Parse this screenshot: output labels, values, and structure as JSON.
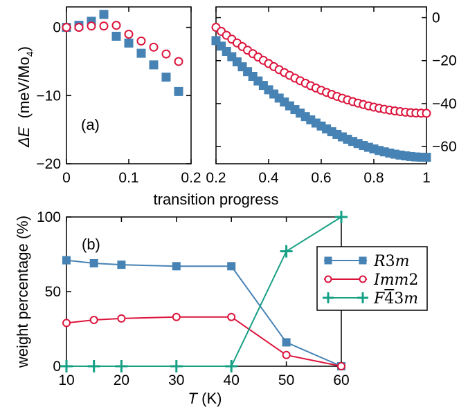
{
  "colors": {
    "blue": "#4682b4",
    "red": "#dc143c",
    "green": "#16a085",
    "axis": "#000000"
  },
  "figure": {
    "shared_xlabel": "transition progress",
    "ylabel_top": {
      "main": "ΔE",
      "units": "(meV/Mo",
      "sub": "4",
      "close": ")"
    },
    "panel_a_label": "(a)",
    "panel_b_label": "(b)",
    "ylabel_bottom": "weight percentage (%)",
    "xlabel_bottom": {
      "var": "T",
      "units": " (K)"
    }
  },
  "chart_data": [
    {
      "id": "a-left",
      "type": "scatter",
      "xlim": [
        0,
        0.2
      ],
      "ylim": [
        -20,
        3
      ],
      "xticks": [
        0,
        0.1,
        0.2
      ],
      "xtick_labels": [
        "0",
        "0.1",
        "0.2"
      ],
      "yticks": [
        0,
        -10,
        -20
      ],
      "ytick_labels": [
        "0",
        "−10",
        "−20"
      ],
      "series": [
        {
          "marker": "square",
          "color": "#4682b4",
          "x": [
            0,
            0.02,
            0.04,
            0.06,
            0.08,
            0.1,
            0.12,
            0.14,
            0.16,
            0.18
          ],
          "y": [
            0,
            0.3,
            0.9,
            1.9,
            -1.3,
            -2.3,
            -3.8,
            -5.5,
            -7.3,
            -9.4
          ]
        },
        {
          "marker": "circle",
          "color": "#dc143c",
          "x": [
            0,
            0.02,
            0.04,
            0.06,
            0.08,
            0.1,
            0.12,
            0.14,
            0.16,
            0.18
          ],
          "y": [
            0,
            0,
            0.2,
            0.2,
            0.3,
            -1.0,
            -2.0,
            -2.9,
            -3.9,
            -5.0
          ]
        }
      ]
    },
    {
      "id": "a-right",
      "type": "scatter",
      "xlim": [
        0.2,
        1.0
      ],
      "ylim": [
        -68,
        5
      ],
      "xticks": [
        0.2,
        0.4,
        0.6,
        0.8,
        1.0
      ],
      "xtick_labels": [
        "0.2",
        "0.4",
        "0.6",
        "0.8",
        "1"
      ],
      "yticks": [
        0,
        -20,
        -40,
        -60
      ],
      "ytick_labels": [
        "0",
        "−20",
        "−40",
        "−60"
      ],
      "series": [
        {
          "marker": "square",
          "color": "#4682b4",
          "from": 0.2,
          "to": 1.0,
          "step": 0.02,
          "y0": -10.7,
          "y1": -65.0
        },
        {
          "marker": "circle",
          "color": "#dc143c",
          "from": 0.2,
          "to": 1.0,
          "step": 0.02,
          "y0": -4.5,
          "y1": -44.5
        }
      ]
    },
    {
      "id": "b",
      "type": "line",
      "xlim": [
        10,
        60
      ],
      "ylim": [
        0,
        100
      ],
      "xticks": [
        10,
        20,
        30,
        40,
        50,
        60
      ],
      "xtick_labels": [
        "10",
        "20",
        "30",
        "40",
        "50",
        "60"
      ],
      "yticks": [
        0,
        50,
        100
      ],
      "ytick_labels": [
        "0",
        "50",
        "100"
      ],
      "series": [
        {
          "name": "R3m",
          "marker": "square",
          "color": "#4682b4",
          "x": [
            10,
            15,
            20,
            30,
            40,
            50,
            60
          ],
          "y": [
            71,
            69,
            68,
            67,
            67,
            16,
            0
          ]
        },
        {
          "name": "Imm2",
          "marker": "circle",
          "color": "#dc143c",
          "x": [
            10,
            15,
            20,
            30,
            40,
            50,
            60
          ],
          "y": [
            29,
            31,
            32,
            33,
            33,
            7.5,
            0
          ]
        },
        {
          "name": "F-43m",
          "marker": "plus",
          "color": "#16a085",
          "x": [
            10,
            15,
            20,
            30,
            40,
            50,
            60
          ],
          "y": [
            0,
            0,
            0,
            0,
            0,
            77,
            100
          ]
        }
      ],
      "legend": {
        "placement": "right",
        "entries": [
          {
            "label": "R3m",
            "parts": [
              [
                "R",
                "i"
              ],
              [
                "3",
                "n"
              ],
              [
                "m",
                "i"
              ]
            ]
          },
          {
            "label": "Imm2",
            "parts": [
              [
                "Imm",
                "i"
              ],
              [
                "2",
                "n"
              ]
            ]
          },
          {
            "label": "F̄43m",
            "parts": [
              [
                "F",
                "i"
              ],
              [
                "4",
                "bar"
              ],
              [
                "3",
                "n"
              ],
              [
                "m",
                "i"
              ]
            ]
          }
        ]
      }
    }
  ]
}
